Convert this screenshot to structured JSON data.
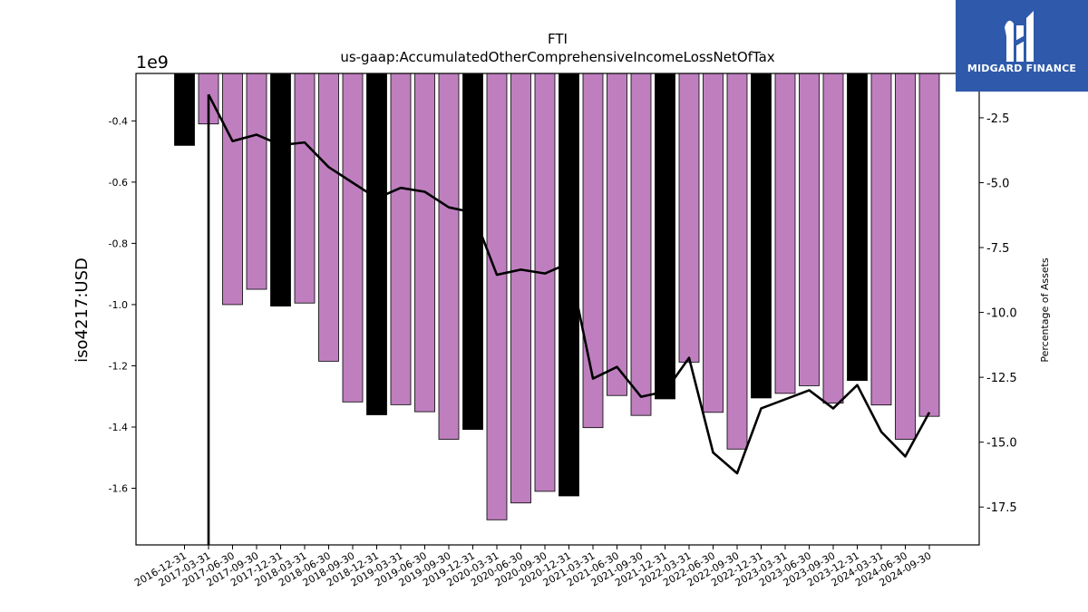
{
  "brand": {
    "name": "MIDGARD FINANCE",
    "bg_color": "#2f5aab"
  },
  "chart_data": {
    "type": "bar",
    "title": "FTI",
    "subtitle": "us-gaap:AccumulatedOtherComprehensiveIncomeLossNetOfTax",
    "ylabel": "iso4217:USD",
    "y_offset_label": "1e9",
    "y2label": "Percentage of Assets",
    "ylim": [
      -1.785,
      -0.245
    ],
    "y2lim": [
      -18.96,
      -0.79
    ],
    "yticks": [
      -0.4,
      -0.6,
      -0.8,
      -1.0,
      -1.2,
      -1.4,
      -1.6
    ],
    "y2ticks": [
      -2.5,
      -5.0,
      -7.5,
      -10.0,
      -12.5,
      -15.0,
      -17.5
    ],
    "categories": [
      "2016-12-31",
      "2017-03-31",
      "2017-06-30",
      "2017-09-30",
      "2017-12-31",
      "2018-03-31",
      "2018-06-30",
      "2018-09-30",
      "2018-12-31",
      "2019-03-31",
      "2019-06-30",
      "2019-09-30",
      "2019-12-31",
      "2020-03-31",
      "2020-06-30",
      "2020-09-30",
      "2020-12-31",
      "2021-03-31",
      "2021-06-30",
      "2021-09-30",
      "2021-12-31",
      "2022-03-31",
      "2022-06-30",
      "2022-09-30",
      "2022-12-31",
      "2023-03-31",
      "2023-06-30",
      "2023-09-30",
      "2023-12-31",
      "2024-03-31",
      "2024-06-30",
      "2024-09-30"
    ],
    "series": [
      {
        "role": "bars",
        "axis": "left",
        "unit_scale": 1000000000.0,
        "values": [
          -0.48,
          -0.41,
          -1.0,
          -0.95,
          -1.005,
          -0.995,
          -1.185,
          -1.318,
          -1.36,
          -1.327,
          -1.35,
          -1.44,
          -1.408,
          -1.703,
          -1.648,
          -1.61,
          -1.625,
          -1.402,
          -1.297,
          -1.362,
          -1.308,
          -1.188,
          -1.352,
          -1.472,
          -1.305,
          -1.29,
          -1.265,
          -1.322,
          -1.248,
          -1.328,
          -1.44,
          -1.365
        ],
        "colors": [
          "#000000",
          "#bf7fbf",
          "#bf7fbf",
          "#bf7fbf",
          "#000000",
          "#bf7fbf",
          "#bf7fbf",
          "#bf7fbf",
          "#000000",
          "#bf7fbf",
          "#bf7fbf",
          "#bf7fbf",
          "#000000",
          "#bf7fbf",
          "#bf7fbf",
          "#bf7fbf",
          "#000000",
          "#bf7fbf",
          "#bf7fbf",
          "#bf7fbf",
          "#000000",
          "#bf7fbf",
          "#bf7fbf",
          "#bf7fbf",
          "#000000",
          "#bf7fbf",
          "#bf7fbf",
          "#bf7fbf",
          "#000000",
          "#bf7fbf",
          "#bf7fbf",
          "#bf7fbf"
        ]
      },
      {
        "role": "line",
        "axis": "right",
        "color": "#000000",
        "values": [
          null,
          -1.6,
          -3.4,
          -3.15,
          -3.55,
          -3.45,
          -4.4,
          -5.0,
          -5.6,
          -5.2,
          -5.35,
          -5.95,
          -6.15,
          -8.55,
          -8.35,
          -8.5,
          -8.1,
          -12.55,
          -12.1,
          -13.25,
          -13.05,
          -11.75,
          -15.4,
          -16.2,
          -13.7,
          -13.35,
          -13.0,
          -13.7,
          -12.8,
          -14.6,
          -15.55,
          -13.85
        ],
        "vertical_drop_at": "2017-03-31"
      }
    ]
  }
}
